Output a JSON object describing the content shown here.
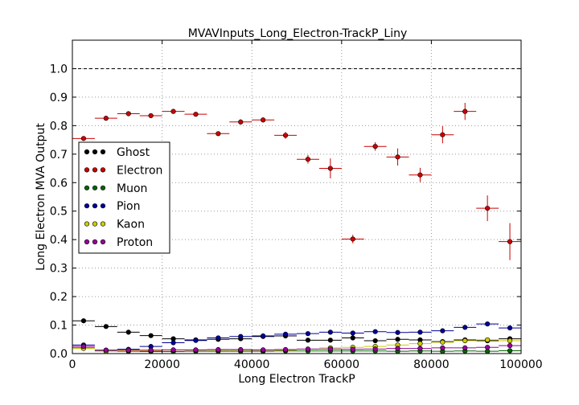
{
  "chart_data": {
    "type": "scatter",
    "title": "MVAVInputs_Long_Electron-TrackP_Liny",
    "xlabel": "Long Electron TrackP",
    "ylabel": "Long Electron MVA Output",
    "xlim": [
      0,
      100000
    ],
    "ylim": [
      0,
      1.1
    ],
    "xticks": [
      0,
      20000,
      40000,
      60000,
      80000,
      100000
    ],
    "xtick_labels": [
      "0",
      "20000",
      "40000",
      "60000",
      "80000",
      "100000"
    ],
    "yticks": [
      0.0,
      0.1,
      0.2,
      0.3,
      0.4,
      0.5,
      0.6,
      0.7,
      0.8,
      0.9,
      1.0
    ],
    "ytick_labels": [
      "0.0",
      "0.1",
      "0.2",
      "0.3",
      "0.4",
      "0.5",
      "0.6",
      "0.7",
      "0.8",
      "0.9",
      "1.0"
    ],
    "grid": true,
    "reference_line": 1.0,
    "legend_position": "center-left",
    "x": [
      2500,
      7500,
      12500,
      17500,
      22500,
      27500,
      32500,
      37500,
      42500,
      47500,
      52500,
      57500,
      62500,
      67500,
      72500,
      77500,
      82500,
      87500,
      92500,
      97500
    ],
    "x_halfwidth": 2500,
    "series": [
      {
        "name": "Ghost",
        "color": "#000000",
        "values": [
          0.115,
          0.095,
          0.075,
          0.063,
          0.052,
          0.048,
          0.05,
          0.052,
          0.06,
          0.062,
          0.047,
          0.047,
          0.055,
          0.045,
          0.05,
          0.048,
          0.042,
          0.048,
          0.045,
          0.052
        ],
        "errors": [
          0.004,
          0.003,
          0.003,
          0.003,
          0.003,
          0.003,
          0.003,
          0.003,
          0.003,
          0.003,
          0.003,
          0.003,
          0.004,
          0.004,
          0.004,
          0.004,
          0.004,
          0.005,
          0.005,
          0.006
        ]
      },
      {
        "name": "Electron",
        "color": "#cc0000",
        "values": [
          0.755,
          0.826,
          0.842,
          0.835,
          0.85,
          0.84,
          0.772,
          0.813,
          0.82,
          0.766,
          0.682,
          0.65,
          0.402,
          0.727,
          0.69,
          0.627,
          0.768,
          0.85,
          0.51,
          0.393
        ],
        "errors": [
          0.006,
          0.006,
          0.006,
          0.007,
          0.007,
          0.008,
          0.008,
          0.009,
          0.009,
          0.012,
          0.015,
          0.035,
          0.015,
          0.015,
          0.03,
          0.025,
          0.03,
          0.03,
          0.045,
          0.065
        ]
      },
      {
        "name": "Muon",
        "color": "#006600",
        "values": [
          0.02,
          0.01,
          0.008,
          0.007,
          0.007,
          0.008,
          0.008,
          0.008,
          0.008,
          0.009,
          0.009,
          0.009,
          0.009,
          0.009,
          0.008,
          0.009,
          0.008,
          0.009,
          0.008,
          0.01
        ],
        "errors": [
          0.002,
          0.002,
          0.002,
          0.002,
          0.002,
          0.002,
          0.002,
          0.002,
          0.002,
          0.002,
          0.002,
          0.002,
          0.002,
          0.002,
          0.002,
          0.002,
          0.002,
          0.002,
          0.002,
          0.002
        ]
      },
      {
        "name": "Pion",
        "color": "#000099",
        "values": [
          0.03,
          0.012,
          0.015,
          0.025,
          0.038,
          0.046,
          0.055,
          0.06,
          0.062,
          0.068,
          0.07,
          0.075,
          0.072,
          0.077,
          0.074,
          0.075,
          0.08,
          0.092,
          0.104,
          0.09
        ],
        "errors": [
          0.001,
          0.001,
          0.001,
          0.001,
          0.001,
          0.001,
          0.001,
          0.001,
          0.001,
          0.001,
          0.001,
          0.001,
          0.001,
          0.001,
          0.001,
          0.001,
          0.001,
          0.002,
          0.002,
          0.002
        ]
      },
      {
        "name": "Kaon",
        "color": "#cccc00",
        "values": [
          0.018,
          0.008,
          0.01,
          0.01,
          0.012,
          0.012,
          0.012,
          0.012,
          0.012,
          0.012,
          0.015,
          0.02,
          0.022,
          0.025,
          0.03,
          0.035,
          0.04,
          0.045,
          0.048,
          0.045
        ],
        "errors": [
          0.001,
          0.001,
          0.001,
          0.001,
          0.001,
          0.001,
          0.001,
          0.001,
          0.001,
          0.001,
          0.001,
          0.001,
          0.001,
          0.001,
          0.001,
          0.001,
          0.001,
          0.002,
          0.002,
          0.002
        ]
      },
      {
        "name": "Proton",
        "color": "#990099",
        "values": [
          0.025,
          0.012,
          0.012,
          0.012,
          0.013,
          0.013,
          0.014,
          0.014,
          0.013,
          0.014,
          0.016,
          0.016,
          0.015,
          0.016,
          0.018,
          0.018,
          0.02,
          0.02,
          0.022,
          0.028
        ],
        "errors": [
          0.001,
          0.001,
          0.001,
          0.001,
          0.001,
          0.001,
          0.001,
          0.001,
          0.001,
          0.001,
          0.001,
          0.001,
          0.001,
          0.001,
          0.001,
          0.001,
          0.001,
          0.002,
          0.002,
          0.002
        ]
      }
    ]
  }
}
